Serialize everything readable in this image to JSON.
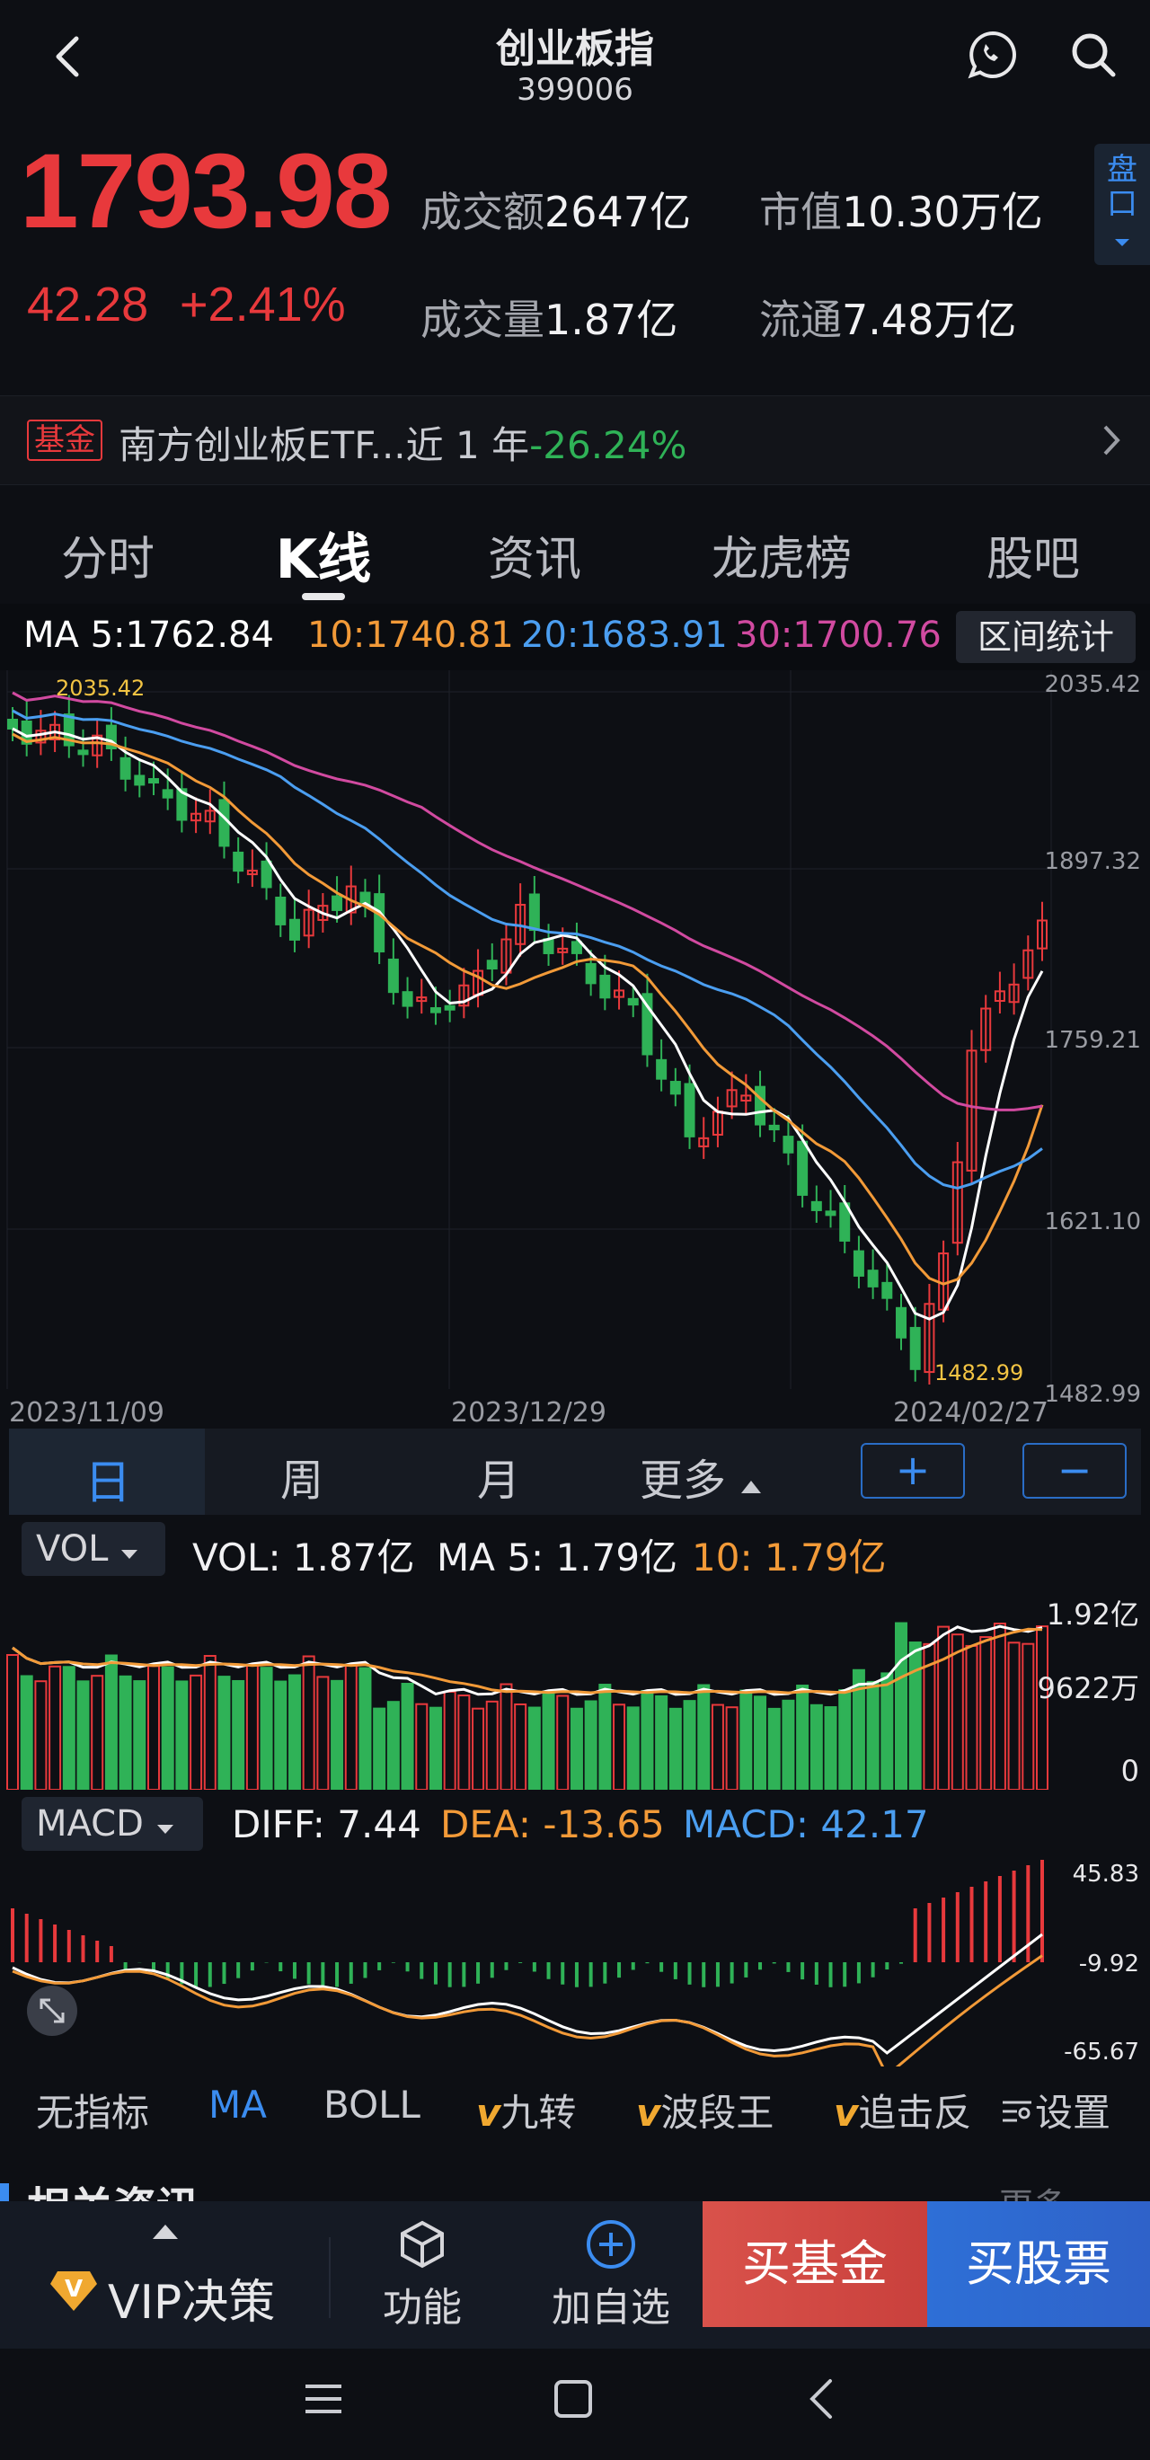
{
  "header": {
    "title": "创业板指",
    "code": "399006"
  },
  "quote": {
    "price": "1793.98",
    "change": "42.28",
    "change_pct": "+2.41%",
    "turnover_label": "成交额",
    "turnover_value": "2647亿",
    "market_cap_label": "市值",
    "market_cap_value": "10.30万亿",
    "volume_label": "成交量",
    "volume_value": "1.87亿",
    "float_label": "流通",
    "float_value": "7.48万亿",
    "pankou": "盘口"
  },
  "fund": {
    "tag": "基金",
    "text": "南方创业板ETF...近 1 年",
    "return": "-26.24%"
  },
  "tabs": [
    "分时",
    "K线",
    "资讯",
    "龙虎榜",
    "股吧"
  ],
  "ma_legend": {
    "ma5": "MA 5:1762.84",
    "ma10": "10:1740.81",
    "ma20": "20:1683.91",
    "ma30": "30:1700.76",
    "range_stats": "区间统计"
  },
  "kline": {
    "y_labels": [
      "2035.42",
      "1897.32",
      "1759.21",
      "1621.10",
      "1482.99"
    ],
    "x_labels": [
      "2023/11/09",
      "2023/12/29",
      "2024/02/27"
    ],
    "high_marker": "2035.42",
    "low_marker": "1482.99"
  },
  "periods": {
    "day": "日",
    "week": "周",
    "month": "月",
    "more": "更多",
    "zoom_in": "+",
    "zoom_out": "−"
  },
  "volume": {
    "selector": "VOL",
    "vol": "VOL: 1.87亿",
    "ma5": "MA 5: 1.79亿",
    "ma10": "10: 1.79亿",
    "y_labels": [
      "1.92亿",
      "9622万",
      "0"
    ]
  },
  "macd": {
    "selector": "MACD",
    "diff": "DIFF: 7.44",
    "dea": "DEA: -13.65",
    "macd": "MACD: 42.17",
    "y_labels": [
      "45.83",
      "-9.92",
      "-65.67"
    ]
  },
  "indicators": {
    "none": "无指标",
    "ma": "MA",
    "boll": "BOLL",
    "jiuzhuan": "九转",
    "boduanwang": "波段王",
    "zhuijifan": "追击反",
    "settings": "设置"
  },
  "news_header": {
    "title": "相关资讯",
    "more": "更多"
  },
  "bottom_bar": {
    "vip": "VIP决策",
    "func": "功能",
    "add": "加自选",
    "buy_fund": "买基金",
    "buy_stock": "买股票"
  },
  "colors": {
    "up": "#e8393c",
    "down": "#2fb257",
    "ma5": "#ffffff",
    "ma10": "#f29a38",
    "ma20": "#4b9ef0",
    "ma30": "#d14aa0",
    "accent": "#3b8cf0"
  }
}
